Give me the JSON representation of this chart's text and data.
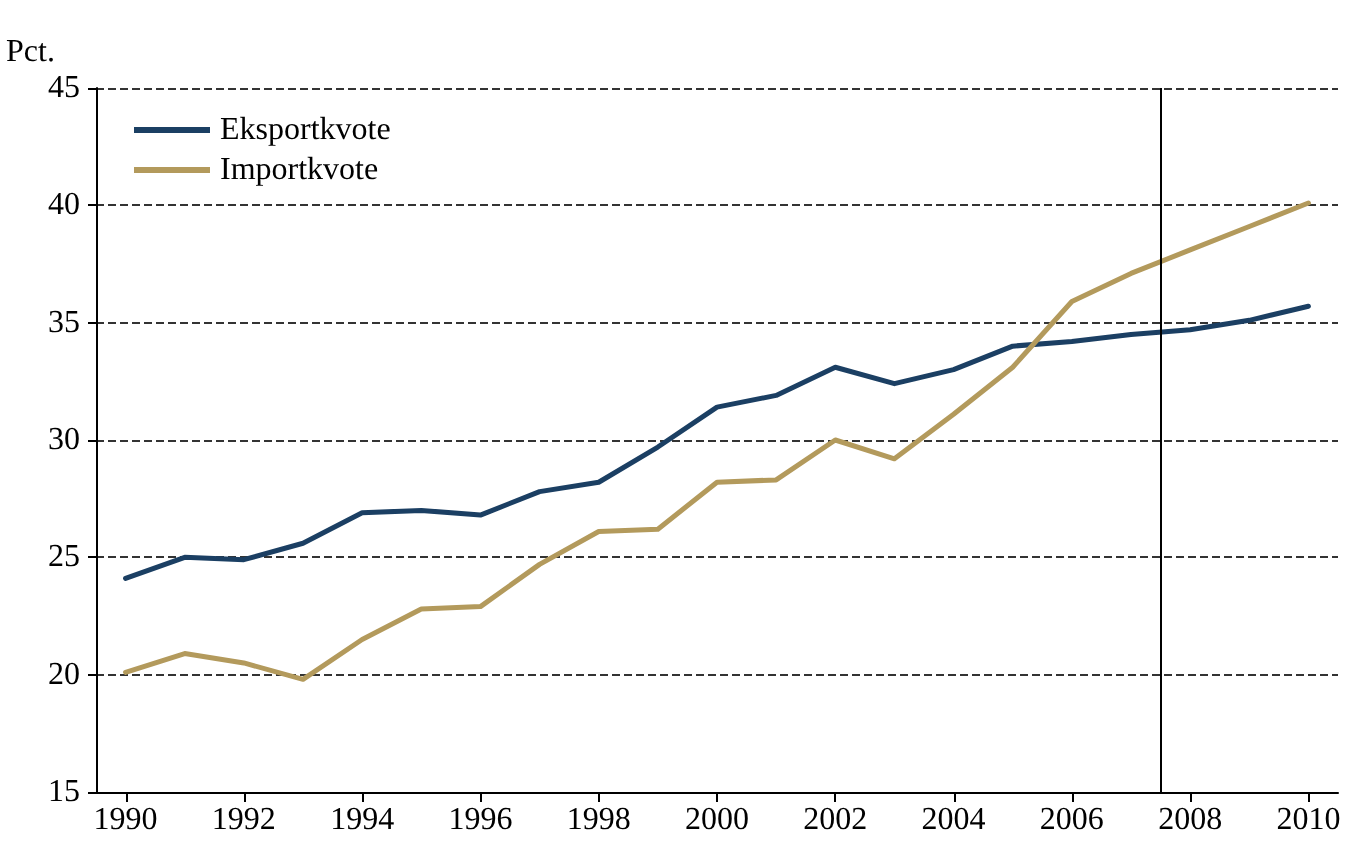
{
  "chart_data": {
    "type": "line",
    "ylabel": "Pct.",
    "x": [
      1990,
      1991,
      1992,
      1993,
      1994,
      1995,
      1996,
      1997,
      1998,
      1999,
      2000,
      2001,
      2002,
      2003,
      2004,
      2005,
      2006,
      2007,
      2008,
      2009,
      2010
    ],
    "series": [
      {
        "name": "Eksportkvote",
        "color": "#1b3f63",
        "values": [
          24.1,
          25.0,
          24.9,
          25.6,
          26.9,
          27.0,
          26.8,
          27.8,
          28.2,
          29.7,
          31.4,
          31.9,
          33.1,
          32.4,
          33.0,
          34.0,
          34.2,
          34.5,
          34.7,
          35.1,
          35.7
        ]
      },
      {
        "name": "Importkvote",
        "color": "#b39a5c",
        "values": [
          20.1,
          20.9,
          20.5,
          19.8,
          21.5,
          22.8,
          22.9,
          24.7,
          26.1,
          26.2,
          28.2,
          28.3,
          30.0,
          29.2,
          31.1,
          33.1,
          35.9,
          37.1,
          38.1,
          39.1,
          40.1
        ]
      }
    ],
    "xlim": [
      1989.5,
      2010.5
    ],
    "xticks": [
      1990,
      1992,
      1994,
      1996,
      1998,
      2000,
      2002,
      2004,
      2006,
      2008,
      2010
    ],
    "ylim": [
      15,
      45
    ],
    "yticks": [
      15,
      20,
      25,
      30,
      35,
      40,
      45
    ],
    "ref_lines": [
      {
        "axis": "x",
        "value": 2007.5,
        "color": "#000000",
        "line_style": "solid"
      }
    ],
    "grid": "y",
    "legend": "top left",
    "marker": "none",
    "line_style": "solid"
  }
}
